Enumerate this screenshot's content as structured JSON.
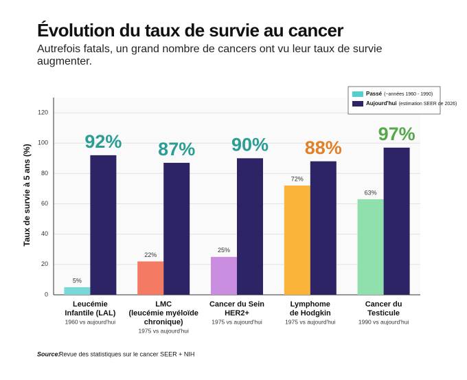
{
  "chart_data": {
    "type": "bar",
    "title": "Évolution du taux de survie au cancer",
    "subtitle": [
      "Autrefois fatals, un grand nombre de cancers ont vu leur taux de survie",
      "augmenter."
    ],
    "ylabel": "Taux de survie à 5 ans (%)",
    "categories": [
      [
        "Leucémie",
        "Infantile (LAL)"
      ],
      [
        "LMC",
        "(leucémie myéloïde",
        "chronique)"
      ],
      [
        "Cancer du Sein",
        "HER2+"
      ],
      [
        "Lymphome",
        "de Hodgkin"
      ],
      [
        "Cancer du",
        "Testicule"
      ]
    ],
    "category_notes": [
      "1960 vs aujourd'hui",
      "1975 vs aujourd'hui",
      "1975 vs aujourd'hui",
      "1975 vs aujourd'hui",
      "1990 vs aujourd'hui"
    ],
    "series": [
      {
        "name": "Passé",
        "note": "(~années 1960 - 1990)",
        "color": "#4fd1d1",
        "colors": [
          "#7ad8d8",
          "#f57a64",
          "#c98ee0",
          "#fbb43a",
          "#8fe0ad"
        ],
        "values": [
          5,
          22,
          25,
          72,
          63
        ],
        "value_labels": [
          "5%",
          "22%",
          "25%",
          "72%",
          "63%"
        ]
      },
      {
        "name": "Aujourd'hui",
        "note": "(estimation SEER de 2026)",
        "color": "#2d2466",
        "values": [
          92,
          87,
          90,
          88,
          97
        ],
        "value_labels": [
          "92%",
          "87%",
          "90%",
          "88%",
          "97%"
        ],
        "value_label_colors": [
          "#2a9d94",
          "#2a9d94",
          "#2a9d94",
          "#e0812a",
          "#55a84a"
        ]
      }
    ],
    "ylim": [
      0,
      130
    ],
    "yticks": [
      0,
      20,
      40,
      60,
      80,
      100,
      120
    ],
    "grid": true,
    "source_label": "Source:",
    "source": "Revue des statistiques sur le cancer SEER + NIH"
  }
}
